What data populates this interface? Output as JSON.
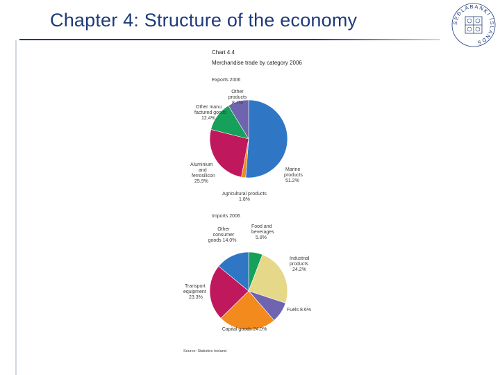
{
  "slide": {
    "title": "Chapter 4: Structure of the economy",
    "seal_text": "SEÐLABANKI ÍSLANDS"
  },
  "chart_data": [
    {
      "type": "pie",
      "title": "Chart 4.4",
      "subtitle": "Merchandise trade by category 2006",
      "panel_title": "Exports 2006",
      "slices": [
        {
          "name": "Marine products",
          "value": 51.2,
          "label": "51.2%",
          "color": "#2f77c4"
        },
        {
          "name": "Agricultural products",
          "value": 1.8,
          "label": "1.8%",
          "color": "#f28a1e"
        },
        {
          "name": "Aluminium and ferrosilicon",
          "value": 25.9,
          "label": "25.9%",
          "color": "#c0185d"
        },
        {
          "name": "Other manufactured goods",
          "value": 12.4,
          "label": "12.4%",
          "color": "#16a05a"
        },
        {
          "name": "Other products",
          "value": 8.7,
          "label": "8.7%",
          "color": "#6e64b0"
        }
      ]
    },
    {
      "type": "pie",
      "panel_title": "Imports 2006",
      "slices": [
        {
          "name": "Food and beverages",
          "value": 5.8,
          "label": "5.8%",
          "color": "#16a05a"
        },
        {
          "name": "Industrial products",
          "value": 24.2,
          "label": "24.2%",
          "color": "#e6d889"
        },
        {
          "name": "Fuels",
          "value": 8.6,
          "label": "8.6%",
          "color": "#6e64b0"
        },
        {
          "name": "Capital goods",
          "value": 24.0,
          "label": "24.0%",
          "color": "#f28a1e"
        },
        {
          "name": "Transport equipment",
          "value": 23.3,
          "label": "23.3%",
          "color": "#c0185d"
        },
        {
          "name": "Other consumer goods",
          "value": 14.0,
          "label": "14.0%",
          "color": "#2f77c4"
        }
      ],
      "source": "Source: Statistics Iceland."
    }
  ],
  "labels": {
    "exports": {
      "marine_1": "Marine",
      "marine_2": "products",
      "marine_3": "51.2%",
      "agri_1": "Agricultural products",
      "agri_2": "1.8%",
      "alu_1": "Aluminium",
      "alu_2": "and",
      "alu_3": "ferrosilicon",
      "alu_4": "25.9%",
      "manu_1": "Other manu",
      "manu_2": "factured goods",
      "manu_3": "12.4%",
      "other_1": "Other",
      "other_2": "products",
      "other_3": "8.7%"
    },
    "imports": {
      "food_1": "Food and",
      "food_2": "beverages",
      "food_3": "5.8%",
      "ind_1": "Industrial",
      "ind_2": "products",
      "ind_3": "24.2%",
      "fuels": "Fuels 8.6%",
      "cap": "Capital goods 24.0%",
      "trans_1": "Transport",
      "trans_2": "equipment",
      "trans_3": "23.3%",
      "cons_1": "Other",
      "cons_2": "consumer",
      "cons_3": "goods 14.0%"
    }
  }
}
